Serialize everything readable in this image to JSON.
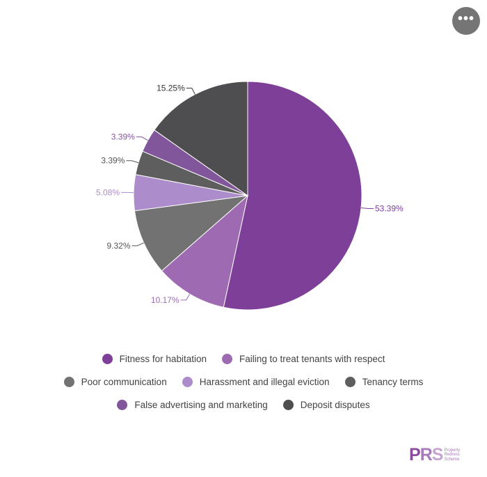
{
  "menu": {
    "icon": "more-horizontal-icon",
    "glyph": "•••"
  },
  "chart_data": {
    "type": "pie",
    "title": "",
    "start_angle_deg": 0,
    "direction": "clockwise",
    "slices": [
      {
        "name": "Fitness for habitation",
        "value": 53.39,
        "label": "53.39%",
        "color": "#7e3f98"
      },
      {
        "name": "Failing to treat tenants with respect",
        "value": 10.17,
        "label": "10.17%",
        "color": "#9e6bb2"
      },
      {
        "name": "Poor communication",
        "value": 9.32,
        "label": "9.32%",
        "color": "#727272"
      },
      {
        "name": "Harassment and illegal eviction",
        "value": 5.08,
        "label": "5.08%",
        "color": "#ad8ccb"
      },
      {
        "name": "Tenancy terms",
        "value": 3.39,
        "label": "3.39%",
        "color": "#5e5e5e"
      },
      {
        "name": "False advertising and marketing",
        "value": 3.39,
        "label": "3.39%",
        "color": "#82569a"
      },
      {
        "name": "Deposit disputes",
        "value": 15.25,
        "label": "15.25%",
        "color": "#4e4e50"
      }
    ],
    "label_colors": {
      "Fitness for habitation": "#7e3f98",
      "Failing to treat tenants with respect": "#9e6bb2",
      "Poor communication": "#555555",
      "Harassment and illegal eviction": "#ad8ccb",
      "Tenancy terms": "#555555",
      "False advertising and marketing": "#82569a",
      "Deposit disputes": "#333333"
    },
    "legend_position": "bottom"
  },
  "logo": {
    "letters": [
      "P",
      "R",
      "S"
    ],
    "lines": [
      "Property",
      "Redress",
      "Scheme"
    ]
  }
}
